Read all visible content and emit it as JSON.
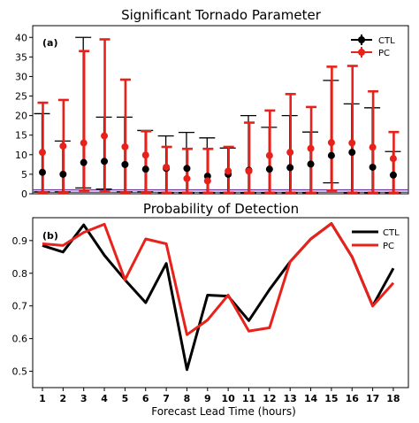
{
  "chart_data": [
    {
      "type": "errorbar",
      "title": "Significant Tornado Parameter",
      "panel_label": "(a)",
      "xlabel": "",
      "ylabel": "",
      "x": [
        1,
        2,
        3,
        4,
        5,
        6,
        7,
        8,
        9,
        10,
        11,
        12,
        13,
        14,
        15,
        16,
        17,
        18
      ],
      "ylim": [
        0,
        43
      ],
      "yticks": [
        0,
        5,
        10,
        15,
        20,
        25,
        30,
        35,
        40
      ],
      "legend_position": "top-right",
      "series": [
        {
          "name": "CTL",
          "color": "#000000",
          "values": [
            5.5,
            5.0,
            8.0,
            8.3,
            7.5,
            6.3,
            6.5,
            6.5,
            4.5,
            5.0,
            6.0,
            6.3,
            6.7,
            7.6,
            9.8,
            10.6,
            6.8,
            4.8
          ],
          "upper": [
            20.5,
            13.5,
            40.0,
            19.6,
            19.6,
            16.2,
            14.8,
            15.7,
            14.3,
            11.7,
            20.0,
            17.0,
            20.0,
            15.8,
            29.0,
            23.0,
            22.0,
            10.8
          ],
          "lower": [
            0.5,
            0.5,
            1.5,
            1.2,
            0.5,
            0.5,
            0.3,
            0.3,
            0.3,
            0.3,
            0.3,
            0.3,
            0.3,
            0.3,
            2.8,
            0.3,
            0.3,
            0.3
          ]
        },
        {
          "name": "PC",
          "color": "#e8221b",
          "values": [
            10.6,
            12.2,
            13.0,
            14.8,
            12.0,
            9.9,
            6.8,
            3.9,
            3.3,
            5.8,
            5.8,
            9.8,
            10.6,
            11.6,
            13.1,
            13.0,
            11.9,
            9.0
          ],
          "upper": [
            23.3,
            24.0,
            36.5,
            39.5,
            29.2,
            16.0,
            12.0,
            11.5,
            11.5,
            12.0,
            18.2,
            21.3,
            25.5,
            22.2,
            32.5,
            32.7,
            26.2,
            15.8
          ],
          "lower": [
            0.3,
            0.3,
            0.8,
            0.6,
            0.3,
            0.3,
            0.3,
            0.3,
            0.3,
            0.3,
            0.3,
            0.3,
            0.3,
            0.3,
            0.8,
            0.3,
            0.3,
            0.3
          ]
        }
      ],
      "reference_lines": [
        {
          "y": 1.0,
          "color": "#6a3a9a"
        },
        {
          "y": 0.4,
          "color": "#6a3a9a"
        }
      ]
    },
    {
      "type": "line",
      "title": "Probability of Detection",
      "panel_label": "(b)",
      "xlabel": "Forecast Lead Time (hours)",
      "ylabel": "",
      "x": [
        1,
        2,
        3,
        4,
        5,
        6,
        7,
        8,
        9,
        10,
        11,
        12,
        13,
        14,
        15,
        16,
        17,
        18
      ],
      "xticks": [
        "1",
        "2",
        "3",
        "4",
        "5",
        "6",
        "7",
        "8",
        "9",
        "10",
        "11",
        "12",
        "13",
        "14",
        "15",
        "16",
        "17",
        "18"
      ],
      "ylim": [
        0.45,
        0.97
      ],
      "yticks": [
        0.5,
        0.6,
        0.7,
        0.8,
        0.9
      ],
      "legend_position": "top-right",
      "series": [
        {
          "name": "CTL",
          "color": "#000000",
          "values": [
            0.885,
            0.865,
            0.948,
            0.855,
            0.78,
            0.71,
            0.83,
            0.505,
            0.733,
            0.73,
            0.655,
            0.75,
            0.835,
            0.905,
            0.952,
            0.85,
            0.7,
            0.815
          ]
        },
        {
          "name": "PC",
          "color": "#e8221b",
          "values": [
            0.89,
            0.885,
            0.925,
            0.95,
            0.78,
            0.905,
            0.89,
            0.612,
            0.657,
            0.733,
            0.623,
            0.633,
            0.835,
            0.905,
            0.952,
            0.85,
            0.7,
            0.77
          ]
        }
      ]
    }
  ]
}
